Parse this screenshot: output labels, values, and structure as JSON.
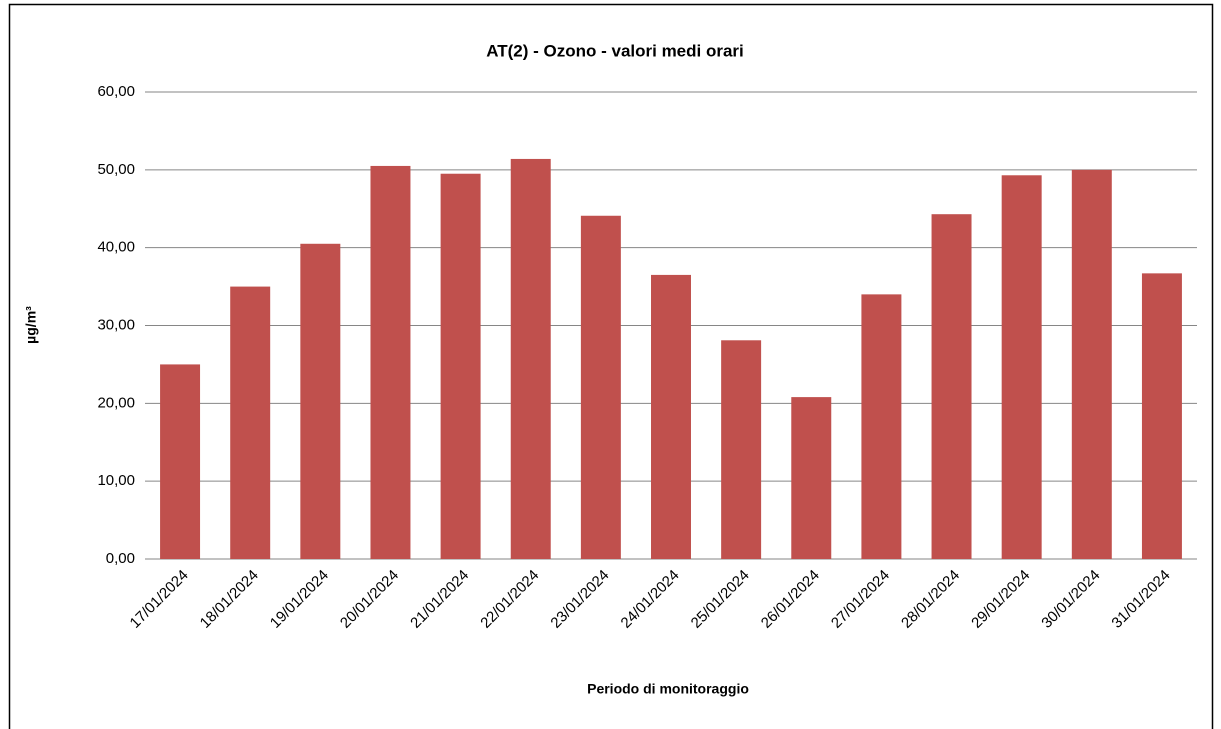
{
  "chart_data": {
    "type": "bar",
    "title": "AT(2) -  Ozono - valori medi orari",
    "x_label": "Periodo di  monitoraggio",
    "y_label": "µg/m³",
    "categories": [
      "17/01/2024",
      "18/01/2024",
      "19/01/2024",
      "20/01/2024",
      "21/01/2024",
      "22/01/2024",
      "23/01/2024",
      "24/01/2024",
      "25/01/2024",
      "26/01/2024",
      "27/01/2024",
      "28/01/2024",
      "29/01/2024",
      "30/01/2024",
      "31/01/2024"
    ],
    "values": [
      25.0,
      35.0,
      40.5,
      50.5,
      49.5,
      51.4,
      44.1,
      36.5,
      28.1,
      20.8,
      34.0,
      44.3,
      49.3,
      50.0,
      36.7
    ],
    "color": "#c0504d",
    "ylim": [
      0,
      60
    ],
    "yticks": [
      {
        "value": 0,
        "label": "0,00"
      },
      {
        "value": 10,
        "label": "10,00"
      },
      {
        "value": 20,
        "label": "20,00"
      },
      {
        "value": 30,
        "label": "30,00"
      },
      {
        "value": 40,
        "label": "40,00"
      },
      {
        "value": 50,
        "label": "50,00"
      },
      {
        "value": 60,
        "label": "60,00"
      }
    ],
    "grid": true
  }
}
